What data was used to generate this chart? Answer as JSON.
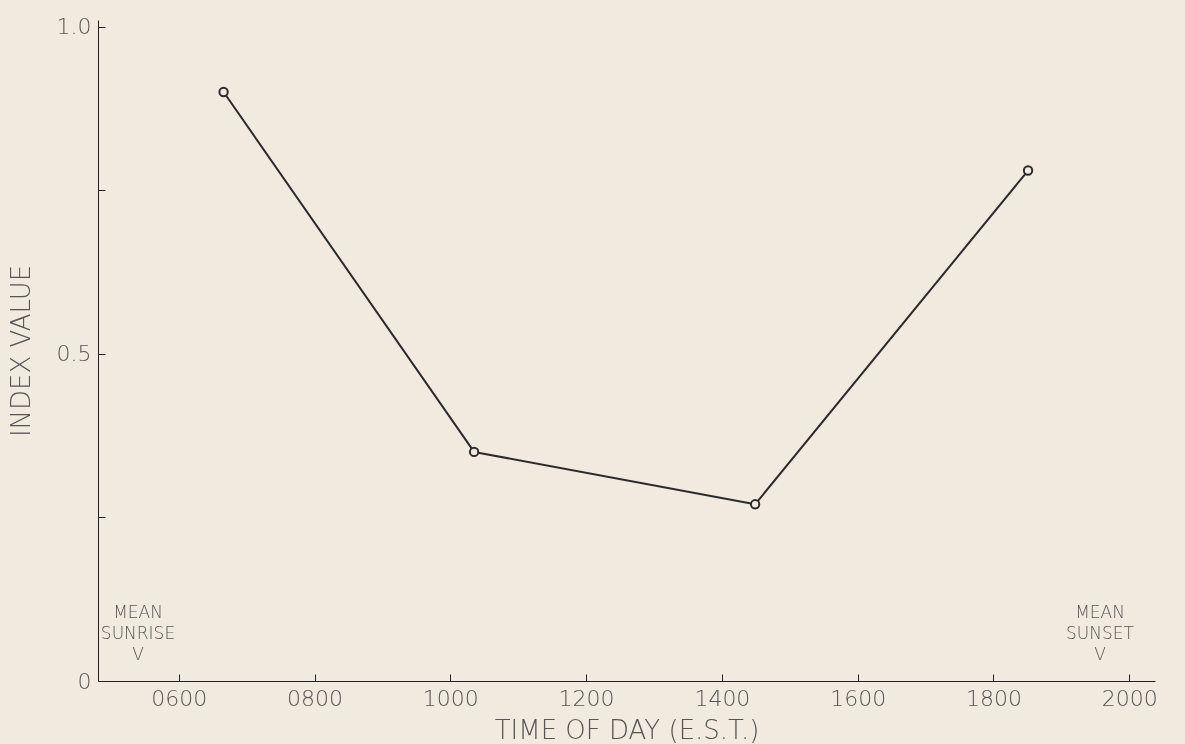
{
  "chart_data": {
    "type": "line",
    "xlabel": "TIME OF DAY (E.S.T.)",
    "ylabel": "INDEX VALUE",
    "x": [
      666,
      1035,
      1449,
      1851
    ],
    "series": [
      {
        "color": "#2b2b2b",
        "values": [
          0.9,
          0.35,
          0.27,
          0.78
        ]
      }
    ],
    "xlim": [
      481,
      2038
    ],
    "xticks": [
      {
        "value": 600,
        "label": "0600"
      },
      {
        "value": 800,
        "label": "0800"
      },
      1000,
      1200,
      1400,
      1600,
      1800,
      2000
    ],
    "ylim": [
      0,
      1.01
    ],
    "yticks": [
      0,
      {
        "value": 0.25,
        "label": null
      },
      0.5,
      {
        "value": 0.75,
        "label": null
      },
      {
        "value": 1,
        "label": "1.0"
      }
    ],
    "annotations": [
      "MEAN SUNRISE V",
      "MEAN SUNSET V"
    ],
    "marker": "circle",
    "line_style": "solid",
    "grid": false,
    "legend": false
  }
}
